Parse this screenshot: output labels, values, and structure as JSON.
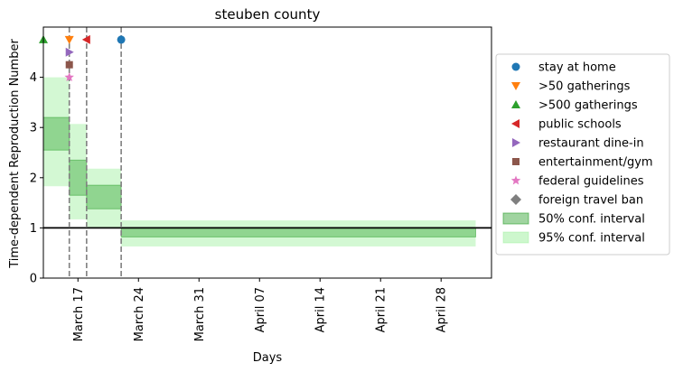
{
  "chart_data": {
    "type": "area",
    "title": "steuben county",
    "xlabel": "Days",
    "ylabel": "Time-dependent Reproduction Number",
    "xlim": [
      "2020-03-13",
      "2020-04-01"
    ],
    "ylim": [
      0,
      5
    ],
    "x_ticks": [
      {
        "date": "2020-03-17",
        "label": "March 17"
      },
      {
        "date": "2020-03-24",
        "label": "March 24"
      },
      {
        "date": "2020-03-31",
        "label": "March 31"
      },
      {
        "date": "2020-04-07",
        "label": "April 07"
      },
      {
        "date": "2020-04-14",
        "label": "April 14"
      },
      {
        "date": "2020-04-21",
        "label": "April 21"
      },
      {
        "date": "2020-04-28",
        "label": "April 28"
      }
    ],
    "y_ticks": [
      0,
      1,
      2,
      3,
      4
    ],
    "reference_line": {
      "y": 1,
      "color": "#000000"
    },
    "intervals": [
      {
        "start": "2020-03-13",
        "end": "2020-03-16",
        "ci50": [
          2.55,
          3.2
        ],
        "ci95": [
          1.83,
          4.0
        ]
      },
      {
        "start": "2020-03-16",
        "end": "2020-03-18",
        "ci50": [
          1.65,
          2.35
        ],
        "ci95": [
          1.17,
          3.07
        ]
      },
      {
        "start": "2020-03-18",
        "end": "2020-03-22",
        "ci50": [
          1.38,
          1.85
        ],
        "ci95": [
          1.0,
          2.18
        ]
      },
      {
        "start": "2020-03-22",
        "end": "2020-05-02",
        "ci50": [
          0.82,
          1.0
        ],
        "ci95": [
          0.63,
          1.15
        ]
      }
    ],
    "interventions": [
      {
        "name": "stay at home",
        "date": "2020-03-22",
        "y": 4.75,
        "marker": "circle",
        "color": "#1f77b4"
      },
      {
        "name": ">50 gatherings",
        "date": "2020-03-16",
        "y": 4.75,
        "marker": "triangle-down",
        "color": "#ff7f0e"
      },
      {
        "name": ">500 gatherings",
        "date": "2020-03-13",
        "y": 4.75,
        "marker": "triangle-up",
        "color": "#2ca02c"
      },
      {
        "name": "public schools",
        "date": "2020-03-18",
        "y": 4.75,
        "marker": "triangle-left",
        "color": "#d62728"
      },
      {
        "name": "restaurant dine-in",
        "date": "2020-03-16",
        "y": 4.5,
        "marker": "triangle-right",
        "color": "#9467bd"
      },
      {
        "name": "entertainment/gym",
        "date": "2020-03-16",
        "y": 4.25,
        "marker": "square",
        "color": "#8c564b"
      },
      {
        "name": "federal guidelines",
        "date": "2020-03-16",
        "y": 4.0,
        "marker": "star",
        "color": "#e377c2"
      },
      {
        "name": "foreign travel ban",
        "date": null,
        "y": null,
        "marker": "diamond",
        "color": "#7f7f7f"
      }
    ],
    "vertical_lines": [
      "2020-03-16",
      "2020-03-18",
      "2020-03-22"
    ],
    "legend": {
      "placement": "right",
      "entries": [
        {
          "label": "stay at home",
          "marker": "circle",
          "color": "#1f77b4"
        },
        {
          "label": ">50 gatherings",
          "marker": "triangle-down",
          "color": "#ff7f0e"
        },
        {
          "label": ">500 gatherings",
          "marker": "triangle-up",
          "color": "#2ca02c"
        },
        {
          "label": "public schools",
          "marker": "triangle-left",
          "color": "#d62728"
        },
        {
          "label": "restaurant dine-in",
          "marker": "triangle-right",
          "color": "#9467bd"
        },
        {
          "label": "entertainment/gym",
          "marker": "square",
          "color": "#8c564b"
        },
        {
          "label": "federal guidelines",
          "marker": "star",
          "color": "#e377c2"
        },
        {
          "label": "foreign travel ban",
          "marker": "diamond",
          "color": "#7f7f7f"
        },
        {
          "label": "50% conf. interval",
          "marker": "patch",
          "color": "#2ca02c"
        },
        {
          "label": "95% conf. interval",
          "marker": "patch",
          "color": "#90ee90"
        }
      ]
    },
    "colors": {
      "ci50": "#2ca02c",
      "ci95": "#90ee90",
      "vline": "#7f7f7f"
    }
  }
}
